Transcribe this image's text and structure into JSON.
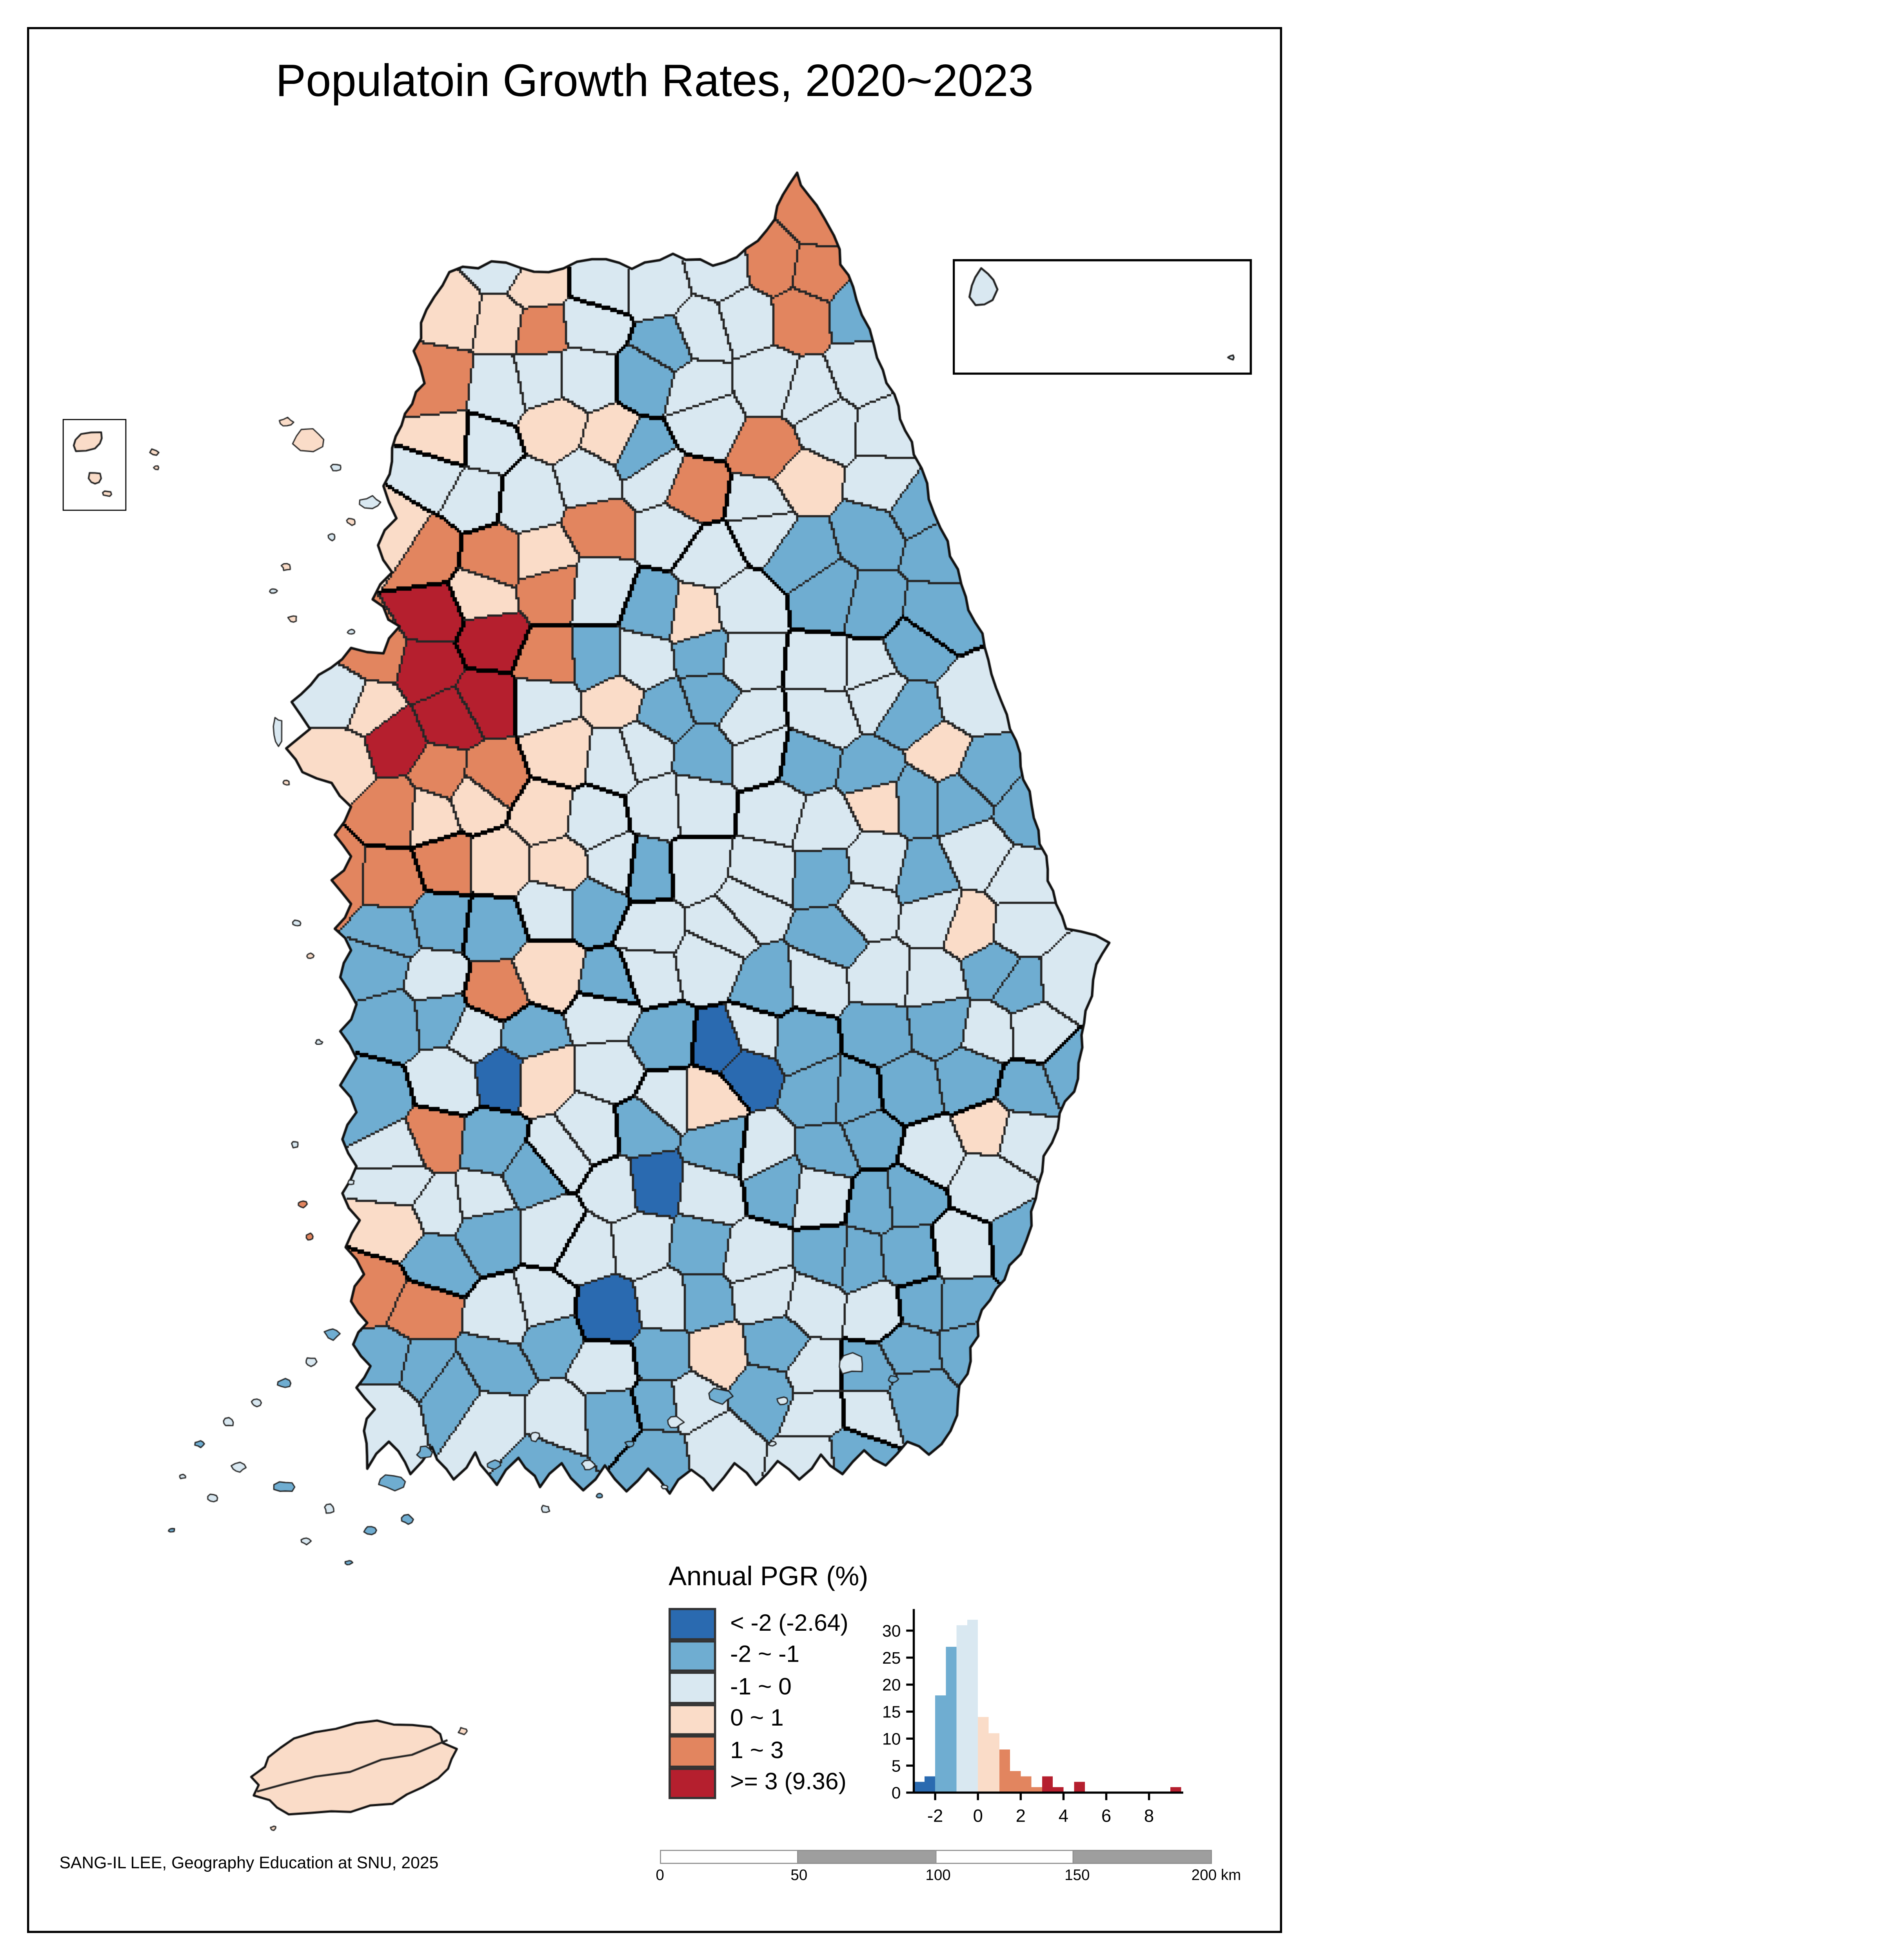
{
  "page": {
    "title": "Populatoin Growth Rates, 2020~2023",
    "attribution": "SANG-IL LEE, Geography Education at SNU, 2025"
  },
  "legend": {
    "title": "Annual PGR (%)",
    "classes": [
      {
        "label": "< -2 (-2.64)",
        "color": "#2a6ab0"
      },
      {
        "label": "-2 ~ -1",
        "color": "#6fadd1"
      },
      {
        "label": "-1 ~ 0",
        "color": "#d9e8f1"
      },
      {
        "label": "0 ~ 1",
        "color": "#fadcc8"
      },
      {
        "label": "1 ~ 3",
        "color": "#e2855f"
      },
      {
        "label": ">= 3 (9.36)",
        "color": "#b51f2e"
      }
    ]
  },
  "chart_data": {
    "type": "bar",
    "variant": "histogram",
    "title": "",
    "xlabel": "",
    "ylabel": "",
    "bin_start": -3,
    "bin_width": 0.5,
    "counts": [
      2,
      3,
      18,
      27,
      31,
      32,
      14,
      11,
      8,
      4,
      3,
      1,
      3,
      1,
      0,
      2,
      0,
      0,
      0,
      0,
      0,
      0,
      0,
      0,
      1
    ],
    "bin_class": [
      0,
      0,
      1,
      1,
      2,
      2,
      3,
      3,
      4,
      4,
      4,
      4,
      5,
      5,
      5,
      5,
      5,
      5,
      5,
      5,
      5,
      5,
      5,
      5,
      5
    ],
    "xticks": [
      -2,
      0,
      2,
      4,
      6,
      8
    ],
    "yticks": [
      0,
      5,
      10,
      15,
      20,
      25,
      30
    ],
    "ylim": [
      0,
      34
    ],
    "grid": false,
    "legend_position": "none"
  },
  "scalebar": {
    "labels": [
      "0",
      "50",
      "100",
      "150",
      "200 km"
    ],
    "segment_colors": [
      "#ffffff",
      "#9e9e9e",
      "#ffffff",
      "#9e9e9e"
    ],
    "border_color": "#8f8f8f"
  },
  "map": {
    "sea_color": "#ffffff",
    "muni_border_color": "#262626",
    "province_border_color": "#000000",
    "coast_color": "#111111"
  }
}
